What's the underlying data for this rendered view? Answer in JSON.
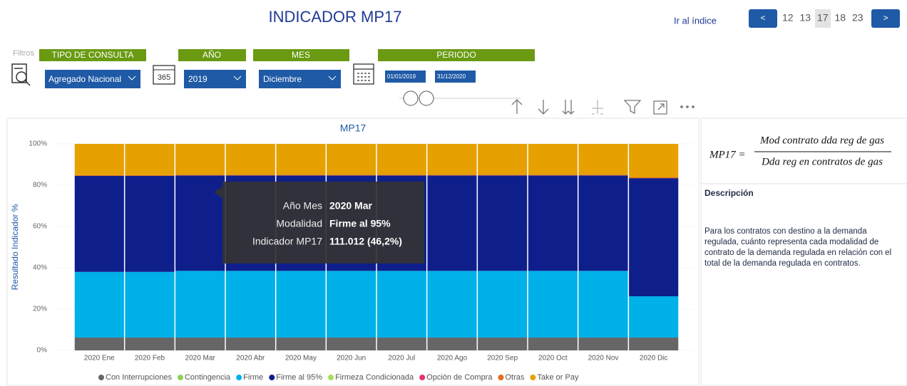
{
  "header": {
    "title": "INDICADOR MP17",
    "index_link": "Ir al índice",
    "pager": {
      "prev": "<",
      "next": ">",
      "pages": [
        "12",
        "13",
        "17",
        "18",
        "23"
      ],
      "current": "17"
    }
  },
  "filters": {
    "label": "Filtros",
    "tipo": {
      "header": "TIPO DE CONSULTA",
      "value": "Agregado Nacional"
    },
    "anio": {
      "header": "AÑO",
      "value": "2019"
    },
    "mes": {
      "header": "MES",
      "value": "Diciembre"
    },
    "periodo": {
      "header": "PERIODO",
      "from": "01/01/2019",
      "to": "31/12/2020"
    },
    "calendar_icon": "365"
  },
  "chart_data": {
    "type": "stacked_bar_100",
    "title": "MP17",
    "y_label": "Resultado Indicador %",
    "categories": [
      "2020 Ene",
      "2020 Feb",
      "2020 Mar",
      "2020 Abr",
      "2020 May",
      "2020 Jun",
      "2020 Jul",
      "2020 Ago",
      "2020 Sep",
      "2020 Oct",
      "2020 Nov",
      "2020 Dic"
    ],
    "series": [
      {
        "name": "Con Interrupciones",
        "color": "#666666",
        "values": [
          6.2,
          6.2,
          6.2,
          6.2,
          6.2,
          6.2,
          6.2,
          6.2,
          6.2,
          6.2,
          6.2,
          6.2
        ]
      },
      {
        "name": "Contingencia",
        "color": "#8fd14f",
        "values": [
          0,
          0,
          0,
          0,
          0,
          0,
          0,
          0,
          0,
          0,
          0,
          0
        ]
      },
      {
        "name": "Firme",
        "color": "#00b0e8",
        "values": [
          31.8,
          31.8,
          32.3,
          32.3,
          32.3,
          32.3,
          32.3,
          32.3,
          32.3,
          32.3,
          32.3,
          20
        ]
      },
      {
        "name": "Firme al 95%",
        "color": "#0e1f8c",
        "values": [
          46.5,
          46.5,
          46.2,
          46.2,
          46.2,
          46.2,
          46.2,
          46.2,
          46.2,
          46.2,
          46.2,
          57.2
        ]
      },
      {
        "name": "Firmeza Condicionada",
        "color": "#a8dc5c",
        "values": [
          0,
          0,
          0,
          0,
          0,
          0,
          0,
          0,
          0,
          0,
          0,
          0
        ]
      },
      {
        "name": "Opción de Compra",
        "color": "#e8336b",
        "values": [
          0,
          0,
          0,
          0,
          0,
          0,
          0,
          0,
          0,
          0,
          0,
          0
        ]
      },
      {
        "name": "Otras",
        "color": "#e66c17",
        "values": [
          0.4,
          0.4,
          0.4,
          0.4,
          0.4,
          0.4,
          0.4,
          0.4,
          0.4,
          0.4,
          0.4,
          0.4
        ]
      },
      {
        "name": "Take or Pay",
        "color": "#e6a100",
        "values": [
          15.1,
          15.1,
          14.9,
          14.9,
          14.9,
          14.9,
          14.9,
          14.9,
          14.9,
          14.9,
          14.9,
          16.2
        ]
      }
    ],
    "ylim": [
      0,
      100
    ],
    "yticks": [
      {
        "value": 0,
        "label": "0%"
      },
      {
        "value": 20,
        "label": "20%"
      },
      {
        "value": 40,
        "label": "40%"
      },
      {
        "value": 60,
        "label": "60%"
      },
      {
        "value": 80,
        "label": "80%"
      },
      {
        "value": 100,
        "label": "100%"
      }
    ],
    "grid": true,
    "legend": "bottom",
    "tooltip": {
      "rows": [
        {
          "label": "Año Mes",
          "value": "2020 Mar"
        },
        {
          "label": "Modalidad",
          "value": "Firme al 95%"
        },
        {
          "label": "Indicador MP17",
          "value": "111.012 (46,2%)"
        }
      ]
    }
  },
  "side_panel": {
    "formula_lhs": "MP17 =",
    "numerator": "Mod contrato dda reg de gas",
    "denominator": "Dda reg en contratos de gas",
    "heading": "Descripción",
    "text": "Para los contratos con destino a la demanda regulada, cuánto representa cada  modalidad de contrato de la demanda regulada en relación con el total de la demanda regulada en contratos."
  }
}
